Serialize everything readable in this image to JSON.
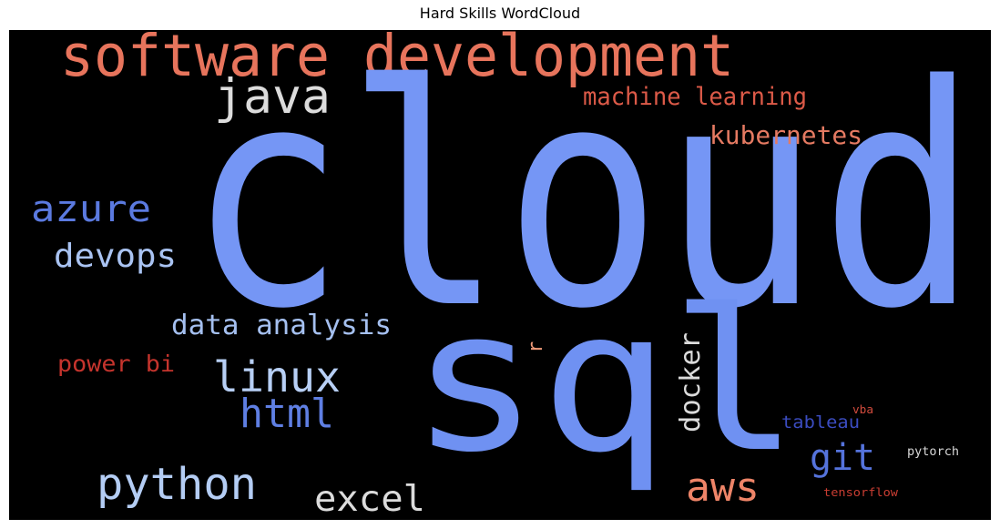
{
  "title": "Hard Skills WordCloud",
  "words": [
    {
      "id": "cloud",
      "text": "cloud",
      "color": "#7596f5"
    },
    {
      "id": "sql",
      "text": "sql",
      "color": "#6f91f2"
    },
    {
      "id": "software-development",
      "text": "software development",
      "color": "#e7745c"
    },
    {
      "id": "java",
      "text": "java",
      "color": "#dcdcdc"
    },
    {
      "id": "machine-learning",
      "text": "machine learning",
      "color": "#dc5a48"
    },
    {
      "id": "kubernetes",
      "text": "kubernetes",
      "color": "#e57a62"
    },
    {
      "id": "azure",
      "text": "azure",
      "color": "#5b7ae0"
    },
    {
      "id": "devops",
      "text": "devops",
      "color": "#a9c3f2"
    },
    {
      "id": "data-analysis",
      "text": "data analysis",
      "color": "#a5c0f0"
    },
    {
      "id": "r",
      "text": "r",
      "color": "#f09b7a"
    },
    {
      "id": "power-bi",
      "text": "power bi",
      "color": "#c5342d"
    },
    {
      "id": "linux",
      "text": "linux",
      "color": "#b7cff5"
    },
    {
      "id": "html",
      "text": "html",
      "color": "#5f7fe3"
    },
    {
      "id": "docker",
      "text": "docker",
      "color": "#dbdbdb"
    },
    {
      "id": "tableau",
      "text": "tableau",
      "color": "#3b4cc0"
    },
    {
      "id": "vba",
      "text": "vba",
      "color": "#d24b3d"
    },
    {
      "id": "git",
      "text": "git",
      "color": "#5573dc"
    },
    {
      "id": "pytorch",
      "text": "pytorch",
      "color": "#d7d7d7"
    },
    {
      "id": "python",
      "text": "python",
      "color": "#b4cdf4"
    },
    {
      "id": "excel",
      "text": "excel",
      "color": "#dcdcdc"
    },
    {
      "id": "aws",
      "text": "aws",
      "color": "#ee8468"
    },
    {
      "id": "tensorflow",
      "text": "tensorflow",
      "color": "#c93d32"
    }
  ]
}
